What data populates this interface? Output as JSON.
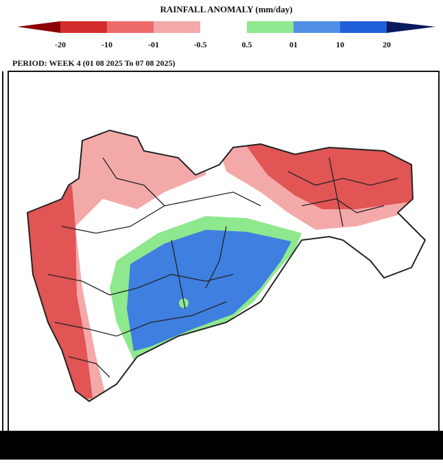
{
  "legend": {
    "title": "RAINFALL ANOMALY (mm/day)",
    "labels": [
      "-20",
      "-10",
      "-01",
      "-0.5",
      "0.5",
      "01",
      "10",
      "20"
    ]
  },
  "period": "PERIOD: WEEK 4 (01 08 2025 To 07 08 2025)"
}
